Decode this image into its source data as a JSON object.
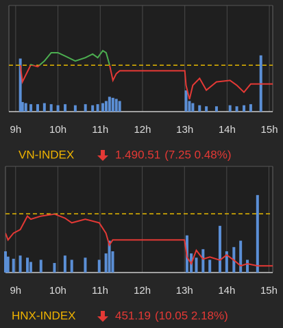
{
  "chart_data": [
    {
      "type": "line",
      "title": "VN-INDEX",
      "index_value": "1.490.51",
      "change_label": "(7.25 0.48%)",
      "x": [
        9.11,
        9.16,
        9.24,
        9.36,
        9.52,
        9.68,
        9.84,
        10.0,
        10.17,
        10.41,
        10.65,
        10.82,
        10.94,
        11.06,
        11.14,
        11.22,
        11.3,
        11.38,
        11.46,
        13.0,
        13.03,
        13.11,
        13.19,
        13.35,
        13.51,
        13.75,
        14.07,
        14.23,
        14.4,
        14.56,
        14.8,
        15.09
      ],
      "values": [
        1497.8,
        1491.3,
        1494.0,
        1498.0,
        1497.2,
        1499.4,
        1502.6,
        1502.6,
        1501.3,
        1499.4,
        1500.7,
        1502.1,
        1500.7,
        1503.4,
        1502.6,
        1498.0,
        1491.9,
        1494.5,
        1495.6,
        1495.6,
        1490.0,
        1484.6,
        1490.0,
        1492.7,
        1488.1,
        1491.3,
        1491.9,
        1490.0,
        1487.3,
        1490.5,
        1490.5,
        1490.51
      ],
      "volume": [
        50,
        9,
        8,
        7,
        7,
        8,
        7,
        6,
        7,
        6,
        7,
        6,
        7,
        8,
        10,
        14,
        13,
        12,
        10,
        0,
        20,
        10,
        8,
        6,
        5,
        5,
        6,
        5,
        6,
        7,
        53,
        0
      ],
      "reference": 1497.76,
      "xlim": [
        8.84,
        15.08
      ],
      "ylim": [
        1479.8,
        1520.9
      ],
      "vlim": [
        0,
        100
      ],
      "xticks": [
        {
          "value": 9,
          "label": "9h"
        },
        {
          "value": 10,
          "label": "10h"
        },
        {
          "value": 11,
          "label": "11h"
        },
        {
          "value": 12,
          "label": "12h"
        },
        {
          "value": 13,
          "label": "13h"
        },
        {
          "value": 14,
          "label": "14h"
        },
        {
          "value": 15,
          "label": "15h"
        }
      ],
      "grid": true,
      "up_color": "#4caf50",
      "down_color": "#e53935",
      "reference_color": "#e6b800",
      "volume_color": "#5b8fd6",
      "title_color": "#f0b400"
    },
    {
      "type": "line",
      "title": "HNX-INDEX",
      "index_value": "451.19",
      "change_label": "(10.05 2.18%)",
      "x": [
        8.76,
        8.82,
        8.95,
        9.11,
        9.28,
        9.36,
        9.6,
        9.92,
        10.17,
        10.33,
        10.65,
        10.98,
        11.14,
        11.22,
        11.3,
        13.0,
        13.06,
        13.16,
        13.28,
        13.44,
        13.6,
        13.84,
        14.0,
        14.17,
        14.33,
        14.49,
        14.73,
        15.09
      ],
      "values": [
        457.5,
        456.2,
        457.5,
        458.2,
        460.8,
        460.2,
        460.8,
        461.2,
        460.4,
        459.5,
        460.2,
        459.5,
        457.5,
        455.2,
        456.2,
        456.2,
        452.9,
        451.6,
        454.2,
        452.5,
        452.9,
        452.3,
        453.3,
        452.3,
        451.2,
        451.6,
        451.2,
        451.19
      ],
      "volume": [
        20,
        15,
        13,
        16,
        14,
        10,
        12,
        9,
        16,
        12,
        14,
        12,
        18,
        30,
        20,
        0,
        35,
        18,
        14,
        22,
        12,
        44,
        20,
        24,
        30,
        12,
        73,
        0
      ],
      "reference": 461.24,
      "xlim": [
        8.76,
        15.09
      ],
      "ylim": [
        449.9,
        470.4
      ],
      "vlim": [
        0,
        100
      ],
      "xticks": [
        {
          "value": 9,
          "label": "9h"
        },
        {
          "value": 10,
          "label": "10h"
        },
        {
          "value": 11,
          "label": "11h"
        },
        {
          "value": 12,
          "label": "12h"
        },
        {
          "value": 13,
          "label": "13h"
        },
        {
          "value": 14,
          "label": "14h"
        },
        {
          "value": 15,
          "label": "15h"
        }
      ],
      "grid": true,
      "up_color": "#4caf50",
      "down_color": "#e53935",
      "reference_color": "#e6b800",
      "volume_color": "#5b8fd6",
      "title_color": "#f0b400"
    }
  ]
}
